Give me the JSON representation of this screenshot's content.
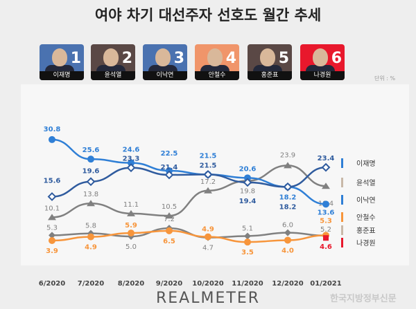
{
  "chart_data": {
    "type": "line",
    "title": "여야 차기 대선주자 선호도 월간 추세",
    "unit_label": "단위 : %",
    "categories": [
      "6/2020",
      "7/2020",
      "8/2020",
      "9/2020",
      "10/2020",
      "11/2020",
      "12/2020",
      "01/2021"
    ],
    "series": [
      {
        "name": "이재명",
        "color": "#2f5b9e",
        "marker": "diamond-hollow",
        "values": [
          15.6,
          19.6,
          23.3,
          21.4,
          21.5,
          19.4,
          18.2,
          23.4
        ]
      },
      {
        "name": "윤석열",
        "color": "#808080",
        "marker": "triangle",
        "values": [
          10.1,
          13.8,
          11.1,
          10.5,
          17.2,
          19.8,
          23.9,
          18.4
        ]
      },
      {
        "name": "이낙연",
        "color": "#2f7fd6",
        "marker": "circle",
        "values": [
          30.8,
          25.6,
          24.6,
          22.5,
          21.5,
          20.6,
          18.2,
          13.6
        ]
      },
      {
        "name": "안철수",
        "color": "#f7953b",
        "marker": "circle",
        "values": [
          3.9,
          4.9,
          5.9,
          6.5,
          4.9,
          3.5,
          4.0,
          5.3
        ]
      },
      {
        "name": "홍준표",
        "color": "#808080",
        "marker": "diamond",
        "values": [
          5.3,
          5.8,
          5.0,
          7.2,
          4.7,
          5.1,
          6.0,
          5.2
        ]
      },
      {
        "name": "나경원",
        "color": "#e8182c",
        "marker": "square",
        "values": [
          null,
          null,
          null,
          null,
          null,
          null,
          null,
          4.6
        ]
      }
    ],
    "legend_placement": "right",
    "grid": false
  },
  "candidates": [
    {
      "name": "이재명",
      "num": "1",
      "bg": "#4a72b0"
    },
    {
      "name": "윤석열",
      "num": "2",
      "bg": "#5a4845"
    },
    {
      "name": "이낙연",
      "num": "3",
      "bg": "#4a72b0"
    },
    {
      "name": "안철수",
      "num": "4",
      "bg": "#f0956a"
    },
    {
      "name": "홍준표",
      "num": "5",
      "bg": "#5a4845"
    },
    {
      "name": "나경원",
      "num": "6",
      "bg": "#e8182c"
    }
  ],
  "logo": "REALMETER",
  "watermark": "한국지방정부신문"
}
